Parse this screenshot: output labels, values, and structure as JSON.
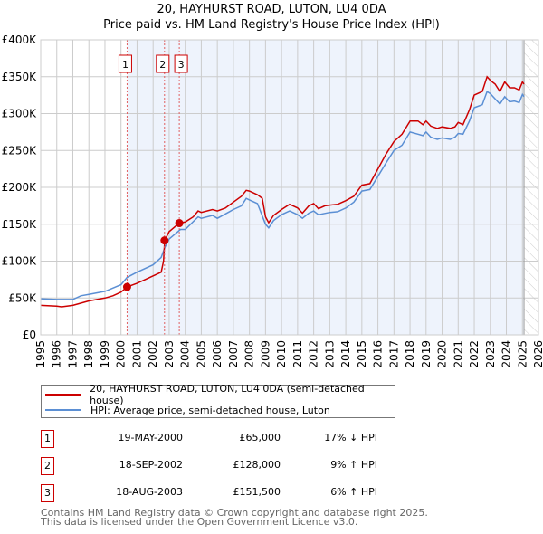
{
  "chart_data": {
    "type": "line",
    "title": "20, HAYHURST ROAD, LUTON, LU4 0DA",
    "subtitle": "Price paid vs. HM Land Registry's House Price Index (HPI)",
    "xlim": [
      1995,
      2026
    ],
    "ylim": [
      0,
      400000
    ],
    "x_ticks": [
      "1995",
      "1996",
      "1997",
      "1998",
      "1999",
      "2000",
      "2001",
      "2002",
      "2003",
      "2004",
      "2005",
      "2006",
      "2007",
      "2008",
      "2009",
      "2010",
      "2011",
      "2012",
      "2013",
      "2014",
      "2015",
      "2016",
      "2017",
      "2018",
      "2019",
      "2020",
      "2021",
      "2022",
      "2023",
      "2024",
      "2025",
      "2026"
    ],
    "y_ticks": [
      {
        "v": 0,
        "label": "£0"
      },
      {
        "v": 50000,
        "label": "£50K"
      },
      {
        "v": 100000,
        "label": "£100K"
      },
      {
        "v": 150000,
        "label": "£150K"
      },
      {
        "v": 200000,
        "label": "£200K"
      },
      {
        "v": 250000,
        "label": "£250K"
      },
      {
        "v": 300000,
        "label": "£300K"
      },
      {
        "v": 350000,
        "label": "£350K"
      },
      {
        "v": 400000,
        "label": "£400K"
      }
    ],
    "grid": true,
    "shaded_from": 2000.38,
    "data_end": 2025.1,
    "colors": {
      "property": "#cc0000",
      "hpi": "#5b8fd4",
      "shade": "#eef3fc"
    },
    "series": [
      {
        "name": "20, HAYHURST ROAD, LUTON, LU4 0DA (semi-detached house)",
        "color": "#cc0000",
        "x": [
          1995,
          1996,
          1996.3,
          1997,
          1998,
          1999,
          1999.5,
          2000,
          2000.38,
          2001,
          2001.5,
          2002,
          2002.5,
          2002.65,
          2002.72,
          2003,
          2003.63,
          2004,
          2004.5,
          2004.8,
          2005,
          2005.7,
          2006,
          2006.5,
          2007,
          2007.5,
          2007.8,
          2008,
          2008.5,
          2008.8,
          2009,
          2009.2,
          2009.5,
          2010,
          2010.5,
          2011,
          2011.3,
          2011.7,
          2012,
          2012.3,
          2012.7,
          2013,
          2013.5,
          2014,
          2014.5,
          2015,
          2015.5,
          2016,
          2016.5,
          2017,
          2017.5,
          2018,
          2018.5,
          2018.8,
          2019,
          2019.3,
          2019.7,
          2020,
          2020.5,
          2020.8,
          2021,
          2021.3,
          2021.7,
          2022,
          2022.5,
          2022.8,
          2023,
          2023.3,
          2023.6,
          2023.9,
          2024.2,
          2024.5,
          2024.8,
          2025,
          2025.1
        ],
        "y": [
          40000,
          39000,
          38000,
          40000,
          46000,
          50000,
          53000,
          58000,
          65000,
          70000,
          75000,
          80000,
          85000,
          100000,
          128000,
          140000,
          151500,
          153000,
          160000,
          168000,
          166000,
          170000,
          168000,
          172000,
          180000,
          188000,
          196000,
          195000,
          190000,
          185000,
          160000,
          152000,
          162000,
          170000,
          177000,
          172000,
          165000,
          175000,
          178000,
          171000,
          175000,
          176000,
          177000,
          182000,
          188000,
          203000,
          205000,
          225000,
          245000,
          262000,
          272000,
          290000,
          290000,
          285000,
          290000,
          283000,
          280000,
          282000,
          280000,
          282000,
          288000,
          285000,
          305000,
          325000,
          330000,
          350000,
          345000,
          340000,
          330000,
          343000,
          335000,
          335000,
          332000,
          343000,
          340000
        ]
      },
      {
        "name": "HPI: Average price, semi-detached house, Luton",
        "color": "#5b8fd4",
        "x": [
          1995,
          1996,
          1997,
          1997.5,
          1998,
          1999,
          2000,
          2000.38,
          2001,
          2002,
          2002.5,
          2002.72,
          2003,
          2003.7,
          2004,
          2004.8,
          2005,
          2005.7,
          2006,
          2007,
          2007.5,
          2007.8,
          2008,
          2008.5,
          2009,
          2009.2,
          2009.5,
          2010,
          2010.5,
          2011,
          2011.3,
          2011.7,
          2012,
          2012.3,
          2013,
          2013.5,
          2014,
          2014.5,
          2015,
          2015.5,
          2016,
          2016.5,
          2017,
          2017.5,
          2018,
          2018.5,
          2018.8,
          2019,
          2019.3,
          2019.7,
          2020,
          2020.5,
          2020.8,
          2021,
          2021.3,
          2021.7,
          2022,
          2022.5,
          2022.8,
          2023,
          2023.3,
          2023.6,
          2023.9,
          2024.2,
          2024.5,
          2024.8,
          2025,
          2025.1
        ],
        "y": [
          49000,
          48000,
          48000,
          53000,
          55000,
          59000,
          68000,
          78000,
          85000,
          95000,
          105000,
          118000,
          130000,
          143000,
          143000,
          160000,
          158000,
          162000,
          158000,
          170000,
          175000,
          185000,
          183000,
          178000,
          150000,
          145000,
          155000,
          163000,
          168000,
          163000,
          158000,
          165000,
          168000,
          163000,
          166000,
          167000,
          172000,
          180000,
          195000,
          197000,
          215000,
          233000,
          250000,
          257000,
          275000,
          272000,
          270000,
          275000,
          268000,
          265000,
          267000,
          265000,
          268000,
          273000,
          272000,
          290000,
          308000,
          312000,
          330000,
          327000,
          320000,
          313000,
          323000,
          316000,
          317000,
          315000,
          326000,
          323000
        ]
      }
    ],
    "sales": [
      {
        "n": "1",
        "x": 2000.38,
        "price": 65000
      },
      {
        "n": "2",
        "x": 2002.71,
        "price": 128000
      },
      {
        "n": "3",
        "x": 2003.63,
        "price": 151500
      }
    ]
  },
  "legend": {
    "property": "20, HAYHURST ROAD, LUTON, LU4 0DA (semi-detached house)",
    "hpi": "HPI: Average price, semi-detached house, Luton"
  },
  "transactions": [
    {
      "n": "1",
      "date": "19-MAY-2000",
      "price": "£65,000",
      "hpi": "17% ↓ HPI"
    },
    {
      "n": "2",
      "date": "18-SEP-2002",
      "price": "£128,000",
      "hpi": "9% ↑ HPI"
    },
    {
      "n": "3",
      "date": "18-AUG-2003",
      "price": "£151,500",
      "hpi": "6% ↑ HPI"
    }
  ],
  "footer": {
    "line1": "Contains HM Land Registry data © Crown copyright and database right 2025.",
    "line2": "This data is licensed under the Open Government Licence v3.0."
  }
}
